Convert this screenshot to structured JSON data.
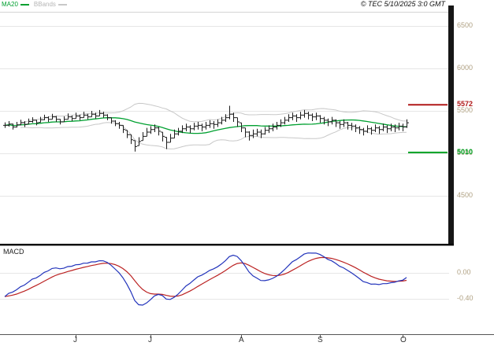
{
  "header": {
    "legend": [
      {
        "label": "MA20",
        "color": "#00a030"
      },
      {
        "label": "BBands",
        "color": "#c8c8c8"
      }
    ],
    "copyright": "© TEC 5/10/2025 3:0 GMT"
  },
  "macd_panel": {
    "title": "MACD"
  },
  "colors": {
    "ma20": "#00a030",
    "bbands": "#c8c8c8",
    "bar": "#1c1c1c",
    "grid": "#e6e6e6",
    "frame": "#d4d4d4",
    "axis_line": "#555555",
    "axis_label": "#b0a183",
    "macd_line": "#2233bb",
    "macd_signal": "#bb2222",
    "resistance": "#b01818",
    "support": "#00a020",
    "separator": "#000000"
  },
  "chart_data": {
    "type": "candlestick",
    "title": "",
    "description": "Daily price bars with MA20, Bollinger Bands, resistance/support levels and MACD sub-panel",
    "y_axis": {
      "ticks": [
        {
          "value": 6500,
          "label": "6500"
        },
        {
          "value": 6000,
          "label": "6000"
        },
        {
          "value": 5500,
          "label": "5500"
        },
        {
          "value": 5000,
          "label": "5000"
        },
        {
          "value": 4500,
          "label": "4500"
        }
      ]
    },
    "x_axis": {
      "ticks": [
        {
          "label": "J",
          "bar_index": 18
        },
        {
          "label": "J",
          "bar_index": 37
        },
        {
          "label": "A",
          "bar_index": 60
        },
        {
          "label": "S",
          "bar_index": 80
        },
        {
          "label": "O",
          "bar_index": 101
        }
      ]
    },
    "macd_axis": {
      "ticks": [
        {
          "value": 0,
          "label": "0.00"
        },
        {
          "value": -0.4,
          "label": "-0.40"
        }
      ]
    },
    "levels": {
      "resistance": {
        "value": 5572,
        "label": "5572",
        "color": "#b01818"
      },
      "support": {
        "value": 5010,
        "label": "5010",
        "color": "#00a020"
      }
    },
    "indicators": {
      "ma_period": 20,
      "bband_period": 20,
      "bband_stddev": 2,
      "macd_fast": 12,
      "macd_slow": 26,
      "macd_signal": 9
    },
    "bars": {
      "high": [
        5365,
        5380,
        5350,
        5370,
        5395,
        5380,
        5410,
        5425,
        5395,
        5430,
        5455,
        5435,
        5465,
        5440,
        5405,
        5435,
        5470,
        5445,
        5480,
        5455,
        5490,
        5465,
        5500,
        5480,
        5510,
        5490,
        5460,
        5420,
        5390,
        5370,
        5330,
        5270,
        5220,
        5150,
        5190,
        5250,
        5300,
        5320,
        5340,
        5310,
        5250,
        5190,
        5230,
        5280,
        5300,
        5330,
        5350,
        5330,
        5360,
        5370,
        5350,
        5370,
        5390,
        5380,
        5400,
        5430,
        5460,
        5560,
        5480,
        5420,
        5360,
        5300,
        5260,
        5280,
        5290,
        5280,
        5310,
        5330,
        5350,
        5370,
        5400,
        5430,
        5460,
        5480,
        5460,
        5490,
        5510,
        5490,
        5470,
        5480,
        5450,
        5430,
        5410,
        5430,
        5400,
        5380,
        5400,
        5370,
        5360,
        5340,
        5320,
        5300,
        5330,
        5310,
        5340,
        5320,
        5350,
        5330,
        5350,
        5340,
        5360,
        5350,
        5400
      ],
      "low": [
        5300,
        5315,
        5280,
        5305,
        5330,
        5310,
        5345,
        5360,
        5330,
        5365,
        5390,
        5370,
        5400,
        5370,
        5340,
        5370,
        5400,
        5380,
        5410,
        5390,
        5420,
        5400,
        5430,
        5410,
        5440,
        5420,
        5390,
        5350,
        5320,
        5290,
        5240,
        5180,
        5110,
        5020,
        5090,
        5150,
        5200,
        5230,
        5250,
        5210,
        5140,
        5050,
        5130,
        5180,
        5210,
        5240,
        5260,
        5240,
        5270,
        5280,
        5260,
        5280,
        5300,
        5290,
        5310,
        5340,
        5370,
        5400,
        5370,
        5310,
        5250,
        5190,
        5150,
        5180,
        5200,
        5180,
        5220,
        5240,
        5260,
        5280,
        5310,
        5340,
        5370,
        5390,
        5370,
        5400,
        5420,
        5400,
        5380,
        5390,
        5360,
        5340,
        5320,
        5340,
        5310,
        5290,
        5310,
        5280,
        5270,
        5250,
        5230,
        5210,
        5240,
        5220,
        5250,
        5230,
        5260,
        5240,
        5260,
        5250,
        5270,
        5260,
        5300
      ],
      "close": [
        5330,
        5345,
        5310,
        5335,
        5360,
        5340,
        5375,
        5390,
        5360,
        5395,
        5420,
        5400,
        5430,
        5400,
        5370,
        5400,
        5430,
        5410,
        5440,
        5420,
        5450,
        5430,
        5460,
        5440,
        5470,
        5450,
        5420,
        5380,
        5350,
        5330,
        5280,
        5220,
        5160,
        5080,
        5140,
        5200,
        5250,
        5280,
        5300,
        5260,
        5200,
        5130,
        5180,
        5230,
        5260,
        5290,
        5310,
        5290,
        5320,
        5330,
        5310,
        5330,
        5350,
        5340,
        5360,
        5390,
        5420,
        5460,
        5420,
        5370,
        5300,
        5250,
        5210,
        5230,
        5250,
        5230,
        5270,
        5290,
        5310,
        5330,
        5360,
        5390,
        5420,
        5440,
        5420,
        5450,
        5470,
        5450,
        5430,
        5440,
        5410,
        5390,
        5370,
        5390,
        5360,
        5340,
        5360,
        5330,
        5320,
        5300,
        5280,
        5260,
        5290,
        5270,
        5300,
        5280,
        5310,
        5290,
        5310,
        5300,
        5320,
        5310,
        5360
      ]
    }
  }
}
